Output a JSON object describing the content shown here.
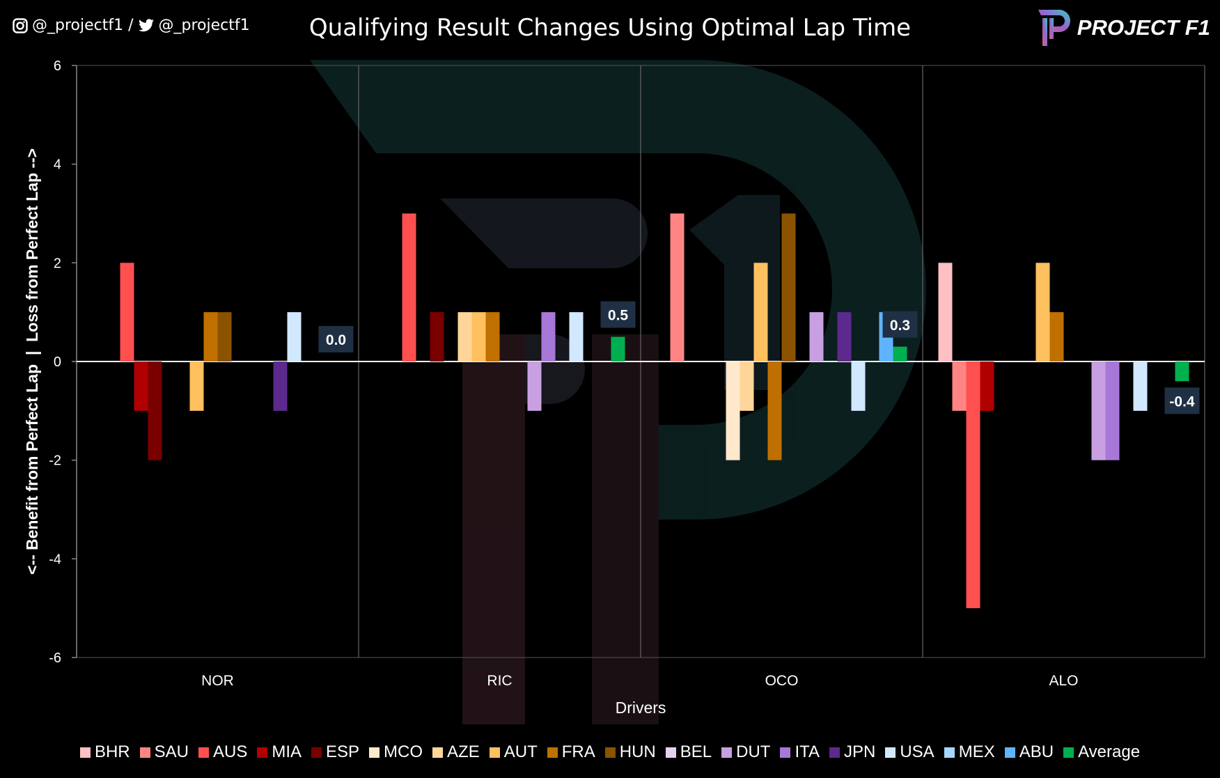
{
  "header": {
    "instagram_handle": "@_projectf1 /",
    "twitter_handle": "@_projectf1",
    "logo_text": "PROJECT F1"
  },
  "chart_data": {
    "type": "bar",
    "title": "Qualifying Result Changes Using Optimal Lap Time",
    "xlabel": "Drivers",
    "ylabel": "<-- Benefit from Perfect Lap  |  Loss from Perfect Lap -->",
    "ylim": [
      -6,
      6
    ],
    "yticks": [
      "-6",
      "-4",
      "-2",
      "0",
      "2",
      "4",
      "6"
    ],
    "grid": "vertical category separators",
    "legend_position": "bottom",
    "categories": [
      "NOR",
      "RIC",
      "OCO",
      "ALO"
    ],
    "series": [
      {
        "name": "BHR",
        "color": "#FFC0C4",
        "values": [
          0,
          0,
          0,
          2
        ]
      },
      {
        "name": "SAU",
        "color": "#FF8585",
        "values": [
          0,
          0,
          3,
          -1
        ]
      },
      {
        "name": "AUS",
        "color": "#FF5050",
        "values": [
          2,
          3,
          0,
          -5
        ]
      },
      {
        "name": "MIA",
        "color": "#B00000",
        "values": [
          -1,
          0,
          0,
          -1
        ]
      },
      {
        "name": "ESP",
        "color": "#7A0000",
        "values": [
          -2,
          1,
          0,
          0
        ]
      },
      {
        "name": "MCO",
        "color": "#FFE8CC",
        "values": [
          0,
          0,
          -2,
          0
        ]
      },
      {
        "name": "AZE",
        "color": "#FFD69A",
        "values": [
          0,
          1,
          -1,
          0
        ]
      },
      {
        "name": "AUT",
        "color": "#FFC060",
        "values": [
          -1,
          1,
          2,
          2
        ]
      },
      {
        "name": "FRA",
        "color": "#C07000",
        "values": [
          1,
          1,
          -2,
          1
        ]
      },
      {
        "name": "HUN",
        "color": "#8B5200",
        "values": [
          1,
          0,
          3,
          0
        ]
      },
      {
        "name": "BEL",
        "color": "#E4D2F0",
        "values": [
          0,
          0,
          0,
          0
        ]
      },
      {
        "name": "DUT",
        "color": "#C8A0E2",
        "values": [
          0,
          -1,
          1,
          -2
        ]
      },
      {
        "name": "ITA",
        "color": "#A878D8",
        "values": [
          0,
          1,
          0,
          -2
        ]
      },
      {
        "name": "JPN",
        "color": "#5C2A8C",
        "values": [
          -1,
          0,
          1,
          0
        ]
      },
      {
        "name": "USA",
        "color": "#D2E8FF",
        "values": [
          1,
          1,
          -1,
          -1
        ]
      },
      {
        "name": "MEX",
        "color": "#A6D6FF",
        "values": [
          0,
          0,
          0,
          0
        ]
      },
      {
        "name": "ABU",
        "color": "#60B4FF",
        "values": [
          0,
          0,
          1,
          0
        ]
      },
      {
        "name": "Average",
        "color": "#00B050",
        "values": [
          0.0,
          0.5,
          0.3,
          -0.4
        ]
      }
    ],
    "data_labels": [
      "0.0",
      "0.5",
      "0.3",
      "-0.4"
    ]
  }
}
